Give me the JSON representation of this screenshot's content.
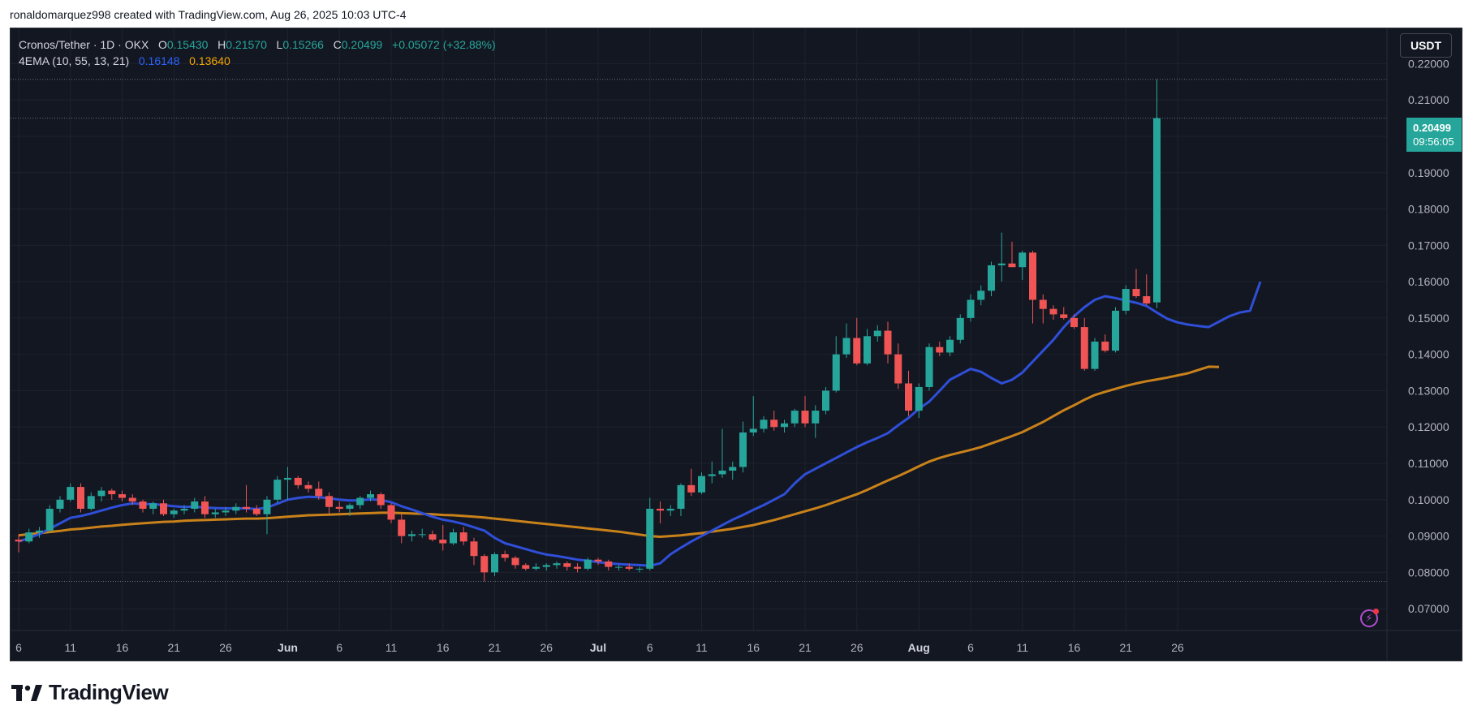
{
  "credit": "ronaldomarquez998 created with TradingView.com, Aug 26, 2025 10:03 UTC-4",
  "brand": "TradingView",
  "legend": {
    "symbol": "Cronos/Tether · 1D · OKX",
    "open_label": "O",
    "open": "0.15430",
    "high_label": "H",
    "high": "0.21570",
    "low_label": "L",
    "low": "0.15266",
    "close_label": "C",
    "close": "0.20499",
    "change": "+0.05072 (+32.88%)",
    "indicator": "4EMA (10, 55, 13, 21)",
    "ema_fast": "0.16148",
    "ema_slow": "0.13640"
  },
  "currency": "USDT",
  "last_price_tag": {
    "price": "0.20499",
    "countdown": "09:56:05"
  },
  "colors": {
    "background": "#131722",
    "up": "#26a69a",
    "down": "#f05454",
    "ema_fast": "#2f4fd8",
    "ema_slow": "#c9821a",
    "text": "#b2b5be"
  },
  "chart_data": {
    "type": "candlestick",
    "title": "Cronos/Tether · 1D · OKX",
    "ylim": [
      0.064,
      0.2297
    ],
    "y_ticks": [
      "0.07000",
      "0.08000",
      "0.09000",
      "0.10000",
      "0.11000",
      "0.12000",
      "0.13000",
      "0.14000",
      "0.15000",
      "0.16000",
      "0.17000",
      "0.18000",
      "0.19000",
      "0.20000",
      "0.21000",
      "0.22000"
    ],
    "x_ticks": [
      {
        "label": "6",
        "i": 0
      },
      {
        "label": "11",
        "i": 5
      },
      {
        "label": "16",
        "i": 10
      },
      {
        "label": "21",
        "i": 15
      },
      {
        "label": "26",
        "i": 20
      },
      {
        "label": "Jun",
        "i": 26
      },
      {
        "label": "6",
        "i": 31
      },
      {
        "label": "11",
        "i": 36
      },
      {
        "label": "16",
        "i": 41
      },
      {
        "label": "21",
        "i": 46
      },
      {
        "label": "26",
        "i": 51
      },
      {
        "label": "Jul",
        "i": 56
      },
      {
        "label": "6",
        "i": 61
      },
      {
        "label": "11",
        "i": 66
      },
      {
        "label": "16",
        "i": 71
      },
      {
        "label": "21",
        "i": 76
      },
      {
        "label": "26",
        "i": 81
      },
      {
        "label": "Aug",
        "i": 87
      },
      {
        "label": "6",
        "i": 92
      },
      {
        "label": "11",
        "i": 97
      },
      {
        "label": "16",
        "i": 102
      },
      {
        "label": "21",
        "i": 107
      },
      {
        "label": "26",
        "i": 112
      }
    ],
    "reference_levels": [
      0.2157,
      0.20499,
      0.0775
    ],
    "candles": [
      [
        0.089,
        0.0905,
        0.0855,
        0.0885
      ],
      [
        0.0885,
        0.092,
        0.088,
        0.091
      ],
      [
        0.091,
        0.0925,
        0.0895,
        0.0915
      ],
      [
        0.0915,
        0.0985,
        0.091,
        0.0975
      ],
      [
        0.0975,
        0.101,
        0.0965,
        0.1
      ],
      [
        0.1,
        0.1045,
        0.0995,
        0.1035
      ],
      [
        0.1035,
        0.1045,
        0.0965,
        0.0975
      ],
      [
        0.0975,
        0.102,
        0.097,
        0.101
      ],
      [
        0.101,
        0.1035,
        0.0995,
        0.1025
      ],
      [
        0.1025,
        0.103,
        0.1,
        0.1015
      ],
      [
        0.1015,
        0.1025,
        0.0995,
        0.1005
      ],
      [
        0.1005,
        0.1015,
        0.0985,
        0.0995
      ],
      [
        0.0995,
        0.1,
        0.0965,
        0.0975
      ],
      [
        0.0975,
        0.0995,
        0.096,
        0.099
      ],
      [
        0.099,
        0.1,
        0.0955,
        0.096
      ],
      [
        0.096,
        0.0975,
        0.095,
        0.097
      ],
      [
        0.097,
        0.0985,
        0.096,
        0.0975
      ],
      [
        0.0975,
        0.1005,
        0.0965,
        0.0995
      ],
      [
        0.0995,
        0.101,
        0.095,
        0.096
      ],
      [
        0.096,
        0.0975,
        0.095,
        0.0965
      ],
      [
        0.0965,
        0.098,
        0.0955,
        0.097
      ],
      [
        0.097,
        0.099,
        0.096,
        0.098
      ],
      [
        0.098,
        0.104,
        0.0965,
        0.0975
      ],
      [
        0.0975,
        0.0985,
        0.0955,
        0.096
      ],
      [
        0.096,
        0.101,
        0.0905,
        0.1
      ],
      [
        0.1,
        0.1065,
        0.099,
        0.1055
      ],
      [
        0.1055,
        0.109,
        0.1,
        0.106
      ],
      [
        0.106,
        0.1065,
        0.103,
        0.104
      ],
      [
        0.104,
        0.105,
        0.102,
        0.103
      ],
      [
        0.103,
        0.105,
        0.1,
        0.101
      ],
      [
        0.101,
        0.102,
        0.096,
        0.098
      ],
      [
        0.098,
        0.0995,
        0.0965,
        0.0975
      ],
      [
        0.0975,
        0.099,
        0.0955,
        0.0985
      ],
      [
        0.0985,
        0.101,
        0.0975,
        0.1005
      ],
      [
        0.1005,
        0.1025,
        0.0995,
        0.1015
      ],
      [
        0.1015,
        0.102,
        0.0975,
        0.0985
      ],
      [
        0.0985,
        0.099,
        0.0935,
        0.0945
      ],
      [
        0.0945,
        0.096,
        0.088,
        0.09
      ],
      [
        0.09,
        0.0915,
        0.0885,
        0.0905
      ],
      [
        0.0905,
        0.092,
        0.0895,
        0.0905
      ],
      [
        0.0905,
        0.0915,
        0.0885,
        0.089
      ],
      [
        0.089,
        0.093,
        0.086,
        0.088
      ],
      [
        0.088,
        0.092,
        0.0875,
        0.091
      ],
      [
        0.091,
        0.0925,
        0.0875,
        0.0885
      ],
      [
        0.0885,
        0.0895,
        0.082,
        0.0845
      ],
      [
        0.0845,
        0.085,
        0.0775,
        0.08
      ],
      [
        0.08,
        0.0855,
        0.079,
        0.085
      ],
      [
        0.085,
        0.086,
        0.083,
        0.084
      ],
      [
        0.084,
        0.0845,
        0.081,
        0.082
      ],
      [
        0.082,
        0.0825,
        0.0805,
        0.081
      ],
      [
        0.081,
        0.0825,
        0.0805,
        0.0815
      ],
      [
        0.0815,
        0.0825,
        0.0805,
        0.082
      ],
      [
        0.082,
        0.083,
        0.081,
        0.0825
      ],
      [
        0.0825,
        0.083,
        0.0805,
        0.0815
      ],
      [
        0.0815,
        0.0825,
        0.08,
        0.081
      ],
      [
        0.081,
        0.084,
        0.0805,
        0.0835
      ],
      [
        0.0835,
        0.084,
        0.082,
        0.083
      ],
      [
        0.083,
        0.0835,
        0.0805,
        0.0815
      ],
      [
        0.0815,
        0.082,
        0.0805,
        0.0815
      ],
      [
        0.0815,
        0.0825,
        0.0805,
        0.081
      ],
      [
        0.081,
        0.0815,
        0.08,
        0.081
      ],
      [
        0.081,
        0.1005,
        0.0805,
        0.0975
      ],
      [
        0.0975,
        0.0995,
        0.0935,
        0.097
      ],
      [
        0.097,
        0.0985,
        0.0955,
        0.0975
      ],
      [
        0.0975,
        0.1045,
        0.0955,
        0.104
      ],
      [
        0.104,
        0.1085,
        0.101,
        0.102
      ],
      [
        0.102,
        0.1075,
        0.1015,
        0.1065
      ],
      [
        0.1065,
        0.1105,
        0.1045,
        0.107
      ],
      [
        0.107,
        0.1195,
        0.106,
        0.108
      ],
      [
        0.108,
        0.1105,
        0.1055,
        0.109
      ],
      [
        0.109,
        0.1215,
        0.1075,
        0.1185
      ],
      [
        0.1185,
        0.1285,
        0.1175,
        0.1195
      ],
      [
        0.1195,
        0.123,
        0.1185,
        0.122
      ],
      [
        0.122,
        0.1245,
        0.119,
        0.12
      ],
      [
        0.12,
        0.122,
        0.1185,
        0.121
      ],
      [
        0.121,
        0.125,
        0.12,
        0.1245
      ],
      [
        0.1245,
        0.1285,
        0.12,
        0.121
      ],
      [
        0.121,
        0.126,
        0.117,
        0.1245
      ],
      [
        0.1245,
        0.131,
        0.1235,
        0.13
      ],
      [
        0.13,
        0.145,
        0.1295,
        0.14
      ],
      [
        0.14,
        0.1485,
        0.139,
        0.1445
      ],
      [
        0.1445,
        0.15,
        0.137,
        0.1375
      ],
      [
        0.1375,
        0.147,
        0.137,
        0.145
      ],
      [
        0.145,
        0.148,
        0.1435,
        0.1465
      ],
      [
        0.1465,
        0.149,
        0.1375,
        0.14
      ],
      [
        0.14,
        0.143,
        0.1305,
        0.132
      ],
      [
        0.132,
        0.1355,
        0.123,
        0.1245
      ],
      [
        0.1245,
        0.132,
        0.1225,
        0.131
      ],
      [
        0.131,
        0.143,
        0.13,
        0.142
      ],
      [
        0.142,
        0.1435,
        0.1395,
        0.1405
      ],
      [
        0.1405,
        0.145,
        0.1395,
        0.144
      ],
      [
        0.144,
        0.151,
        0.143,
        0.15
      ],
      [
        0.15,
        0.1565,
        0.149,
        0.155
      ],
      [
        0.155,
        0.159,
        0.1535,
        0.1575
      ],
      [
        0.1575,
        0.1655,
        0.156,
        0.1645
      ],
      [
        0.1645,
        0.1735,
        0.16,
        0.165
      ],
      [
        0.165,
        0.171,
        0.164,
        0.164
      ],
      [
        0.164,
        0.1685,
        0.1605,
        0.168
      ],
      [
        0.168,
        0.1685,
        0.1485,
        0.155
      ],
      [
        0.155,
        0.1565,
        0.1485,
        0.1525
      ],
      [
        0.1525,
        0.1535,
        0.1495,
        0.151
      ],
      [
        0.151,
        0.153,
        0.1495,
        0.15
      ],
      [
        0.15,
        0.151,
        0.147,
        0.1475
      ],
      [
        0.1475,
        0.15,
        0.1355,
        0.136
      ],
      [
        0.136,
        0.1445,
        0.1355,
        0.1435
      ],
      [
        0.1435,
        0.1455,
        0.1405,
        0.141
      ],
      [
        0.141,
        0.153,
        0.1405,
        0.152
      ],
      [
        0.152,
        0.159,
        0.151,
        0.158
      ],
      [
        0.158,
        0.1635,
        0.1555,
        0.156
      ],
      [
        0.156,
        0.162,
        0.1535,
        0.154
      ],
      [
        0.1543,
        0.2157,
        0.1527,
        0.205
      ]
    ],
    "ema_fast_values": [
      0.0885,
      0.0895,
      0.0905,
      0.092,
      0.0935,
      0.095,
      0.0955,
      0.0962,
      0.097,
      0.0978,
      0.0985,
      0.099,
      0.0988,
      0.0988,
      0.0985,
      0.0982,
      0.098,
      0.0981,
      0.0978,
      0.0977,
      0.0976,
      0.0976,
      0.0976,
      0.0974,
      0.0978,
      0.0989,
      0.1,
      0.1005,
      0.1008,
      0.1007,
      0.1004,
      0.1,
      0.0998,
      0.0998,
      0.1001,
      0.0999,
      0.0993,
      0.0982,
      0.0973,
      0.0963,
      0.0953,
      0.0945,
      0.094,
      0.0933,
      0.0924,
      0.0915,
      0.0895,
      0.088,
      0.0872,
      0.0864,
      0.0856,
      0.0849,
      0.0845,
      0.084,
      0.0835,
      0.0832,
      0.0828,
      0.0825,
      0.0823,
      0.0821,
      0.082,
      0.0818,
      0.0825,
      0.085,
      0.0868,
      0.0885,
      0.09,
      0.0915,
      0.093,
      0.0945,
      0.0958,
      0.0972,
      0.0985,
      0.1,
      0.1015,
      0.1045,
      0.107,
      0.1085,
      0.11,
      0.1115,
      0.113,
      0.1145,
      0.1158,
      0.117,
      0.1183,
      0.1205,
      0.1225,
      0.125,
      0.127,
      0.13,
      0.133,
      0.1345,
      0.136,
      0.1352,
      0.1335,
      0.132,
      0.133,
      0.135,
      0.138,
      0.141,
      0.144,
      0.1475,
      0.1505,
      0.153,
      0.155,
      0.156,
      0.1555,
      0.1548,
      0.1542,
      0.1533,
      0.1515,
      0.1498,
      0.1488,
      0.1482,
      0.1478,
      0.1475,
      0.149,
      0.1505,
      0.1515,
      0.152,
      0.16
    ],
    "ema_slow_values": [
      0.0902,
      0.0905,
      0.0908,
      0.0911,
      0.0914,
      0.0918,
      0.092,
      0.0923,
      0.0926,
      0.0928,
      0.0931,
      0.0933,
      0.0935,
      0.0937,
      0.0939,
      0.094,
      0.0942,
      0.0943,
      0.0944,
      0.0945,
      0.0946,
      0.0947,
      0.0948,
      0.0948,
      0.0949,
      0.0951,
      0.0953,
      0.0955,
      0.0957,
      0.0958,
      0.0959,
      0.096,
      0.0961,
      0.0962,
      0.0963,
      0.0964,
      0.0964,
      0.0963,
      0.0962,
      0.0961,
      0.096,
      0.0958,
      0.0957,
      0.0955,
      0.0953,
      0.0951,
      0.0948,
      0.0945,
      0.0942,
      0.0939,
      0.0936,
      0.0933,
      0.093,
      0.0927,
      0.0924,
      0.0921,
      0.0918,
      0.0915,
      0.0912,
      0.0908,
      0.0904,
      0.09,
      0.0898,
      0.09,
      0.0902,
      0.0905,
      0.0908,
      0.0912,
      0.0916,
      0.092,
      0.0925,
      0.093,
      0.0937,
      0.0944,
      0.0952,
      0.096,
      0.0968,
      0.0976,
      0.0985,
      0.0995,
      0.1005,
      0.1015,
      0.1027,
      0.104,
      0.1053,
      0.1065,
      0.1078,
      0.1092,
      0.1105,
      0.1115,
      0.1123,
      0.113,
      0.1137,
      0.1145,
      0.1155,
      0.1165,
      0.1175,
      0.1186,
      0.12,
      0.1214,
      0.123,
      0.1246,
      0.126,
      0.1275,
      0.1288,
      0.1297,
      0.1305,
      0.1313,
      0.132,
      0.1326,
      0.1331,
      0.1336,
      0.1342,
      0.1348,
      0.1357,
      0.1366,
      0.1365
    ]
  }
}
